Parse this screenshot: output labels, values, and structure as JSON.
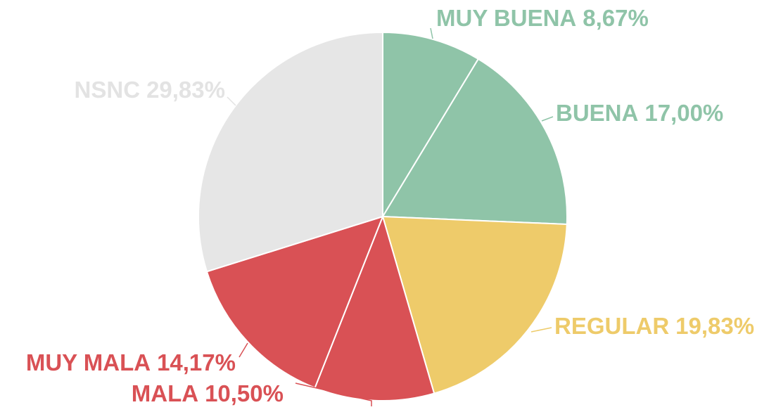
{
  "chart_data": {
    "type": "pie",
    "categories": [
      "MUY BUENA",
      "BUENA",
      "REGULAR",
      "MALA",
      "MUY MALA",
      "NSNC"
    ],
    "values": [
      8.67,
      17.0,
      19.83,
      10.5,
      14.17,
      29.83
    ],
    "value_labels": [
      "8,67%",
      "17,00%",
      "19,83%",
      "10,50%",
      "14,17%",
      "29,83%"
    ],
    "colors": [
      "#8fc4a8",
      "#8fc4a8",
      "#eecb6a",
      "#d95155",
      "#d95155",
      "#e6e6e6"
    ],
    "label_colors": [
      "#8fc4a8",
      "#8fc4a8",
      "#eecb6a",
      "#d95155",
      "#d95155",
      "#e3e3e3"
    ]
  }
}
